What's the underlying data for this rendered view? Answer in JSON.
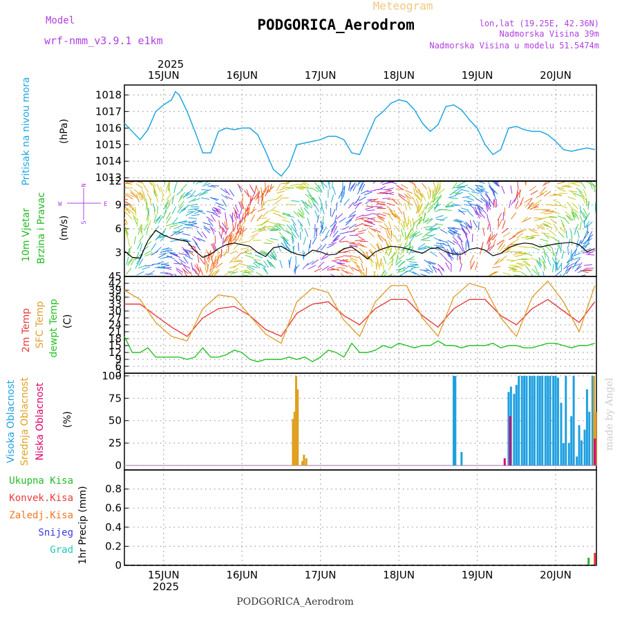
{
  "header": {
    "model_label": "Model",
    "model_name": "wrf-nmm_v3.9.1 e1km",
    "meteogram_label": "Meteogram",
    "station": "PODGORICA_Aerodrom",
    "lonlat": "lon,lat (19.25E, 42.36N)",
    "elevation": "Nadmorska Visina 39m",
    "model_elevation": "Nadmorska Visina u modelu 51.5474m",
    "footer_station": "PODGORICA_Aerodrom",
    "watermark": "made by Angel"
  },
  "time_axis": {
    "year": "2025",
    "days": [
      "15JUN",
      "16JUN",
      "17JUN",
      "18JUN",
      "19JUN",
      "20JUN"
    ]
  },
  "colors": {
    "pressure": "#1fa6e0",
    "temp2m": "#e83a3a",
    "sfc_temp": "#e0a030",
    "dewpt": "#22c322",
    "high_cloud": "#1fa0e0",
    "mid_cloud": "#e0a020",
    "low_cloud": "#e0006a",
    "total_rain": "#22bb22",
    "conv_rain": "#e83a3a",
    "freezing_rain": "#f07820",
    "snow": "#3a3ae0",
    "graupel": "#22c8b8",
    "model_label": "#b040e0"
  },
  "chart_data": [
    {
      "type": "line",
      "panel": "pressure",
      "ylabel": [
        "Pritisak na nivou mora",
        "(hPa)"
      ],
      "ylim": [
        1012.8,
        1018.6
      ],
      "yticks": [
        1013,
        1014,
        1015,
        1016,
        1017,
        1018
      ],
      "x_unit": "days since 15JUN 00UTC",
      "series": [
        {
          "x": [
            -0.5,
            -0.4,
            -0.3,
            -0.2,
            -0.1,
            0,
            0.1,
            0.15,
            0.2,
            0.3,
            0.4,
            0.5,
            0.6,
            0.7,
            0.8,
            0.9,
            1,
            1.1,
            1.2,
            1.3,
            1.4,
            1.5,
            1.6,
            1.7,
            1.8,
            1.9,
            2,
            2.1,
            2.2,
            2.3,
            2.4,
            2.5,
            2.6,
            2.7,
            2.8,
            2.9,
            3,
            3.1,
            3.2,
            3.3,
            3.4,
            3.5,
            3.6,
            3.7,
            3.8,
            3.9,
            4,
            4.1,
            4.2,
            4.3,
            4.4,
            4.5,
            4.6,
            4.7,
            4.8,
            4.9,
            5,
            5.1,
            5.2,
            5.3,
            5.4,
            5.5
          ],
          "y": [
            1016.3,
            1015.8,
            1015.3,
            1015.9,
            1017.0,
            1017.4,
            1017.7,
            1018.2,
            1018.0,
            1017.0,
            1015.8,
            1014.5,
            1014.5,
            1015.8,
            1016.0,
            1015.9,
            1016.0,
            1016.0,
            1015.6,
            1014.6,
            1013.5,
            1013.1,
            1013.7,
            1015.0,
            1015.1,
            1015.2,
            1015.3,
            1015.5,
            1015.5,
            1015.3,
            1014.5,
            1014.4,
            1015.5,
            1016.6,
            1017.0,
            1017.5,
            1017.7,
            1017.6,
            1017.1,
            1016.3,
            1015.8,
            1016.2,
            1017.3,
            1017.4,
            1017.1,
            1016.5,
            1016.0,
            1015.0,
            1014.4,
            1014.7,
            1016.0,
            1016.1,
            1015.9,
            1015.8,
            1015.8,
            1015.6,
            1015.2,
            1014.7,
            1014.6,
            1014.7,
            1014.8,
            1014.7
          ]
        }
      ]
    },
    {
      "type": "line",
      "panel": "wind",
      "ylabel": [
        "10m Vjetar",
        "Brzina i Pravac",
        "(m/s)"
      ],
      "compass": [
        "N",
        "S",
        "W",
        "E"
      ],
      "ylim": [
        0,
        12
      ],
      "yticks": [
        3,
        6,
        9,
        12
      ],
      "x_unit": "days since 15JUN 00UTC",
      "series": [
        {
          "name": "speed",
          "x": [
            -0.5,
            -0.4,
            -0.3,
            -0.2,
            -0.1,
            0,
            0.1,
            0.2,
            0.3,
            0.4,
            0.5,
            0.6,
            0.7,
            0.8,
            0.9,
            1,
            1.1,
            1.2,
            1.3,
            1.4,
            1.5,
            1.6,
            1.7,
            1.8,
            1.9,
            2,
            2.1,
            2.2,
            2.3,
            2.4,
            2.5,
            2.6,
            2.7,
            2.8,
            2.9,
            3,
            3.1,
            3.2,
            3.3,
            3.4,
            3.5,
            3.6,
            3.7,
            3.8,
            3.9,
            4,
            4.1,
            4.2,
            4.3,
            4.4,
            4.5,
            4.6,
            4.7,
            4.8,
            4.9,
            5,
            5.1,
            5.2,
            5.3,
            5.4,
            5.5
          ],
          "y": [
            3.2,
            2.4,
            2.3,
            4.5,
            5.8,
            5.2,
            4.8,
            4.6,
            4.4,
            3.2,
            2.4,
            2.8,
            3.5,
            4.0,
            4.2,
            4.0,
            3.8,
            3.0,
            2.5,
            3.6,
            3.8,
            3.2,
            2.8,
            2.6,
            3.3,
            3.1,
            2.7,
            2.8,
            3.5,
            3.7,
            3.0,
            2.2,
            3.1,
            3.5,
            3.8,
            3.7,
            3.5,
            3.2,
            2.9,
            3.5,
            3.6,
            3.1,
            2.8,
            2.8,
            3.4,
            3.6,
            3.3,
            2.6,
            2.9,
            3.6,
            4.0,
            4.2,
            4.1,
            3.7,
            3.9,
            4.1,
            4.2,
            4.3,
            4.0,
            3.1,
            3.5
          ]
        }
      ]
    },
    {
      "type": "line",
      "panel": "temperature",
      "ylabel": [
        "2m Temp",
        "SFC Temp",
        "dewpt Temp",
        "(C)"
      ],
      "ylim": [
        3,
        45
      ],
      "yticks": [
        3,
        6,
        9,
        12,
        15,
        18,
        21,
        24,
        27,
        30,
        33,
        36,
        39,
        42,
        45
      ],
      "x_unit": "days since 15JUN 00UTC",
      "series": [
        {
          "name": "2m Temp",
          "x": [
            -0.5,
            -0.3,
            -0.1,
            0.1,
            0.3,
            0.5,
            0.7,
            0.9,
            1.1,
            1.3,
            1.5,
            1.7,
            1.9,
            2.1,
            2.3,
            2.5,
            2.7,
            2.9,
            3.1,
            3.3,
            3.5,
            3.7,
            3.9,
            4.1,
            4.3,
            4.5,
            4.7,
            4.9,
            5.1,
            5.3,
            5.5
          ],
          "y": [
            33,
            33,
            28,
            23,
            19,
            27,
            31,
            32,
            28,
            22,
            19,
            29,
            33,
            34,
            28,
            24,
            31,
            35,
            35,
            28,
            23,
            31,
            35,
            35,
            28,
            24,
            31,
            35,
            30,
            25,
            34
          ]
        },
        {
          "name": "SFC Temp",
          "x": [
            -0.5,
            -0.3,
            -0.1,
            0.1,
            0.3,
            0.5,
            0.7,
            0.9,
            1.1,
            1.3,
            1.5,
            1.7,
            1.9,
            2.1,
            2.3,
            2.5,
            2.7,
            2.9,
            3.1,
            3.3,
            3.5,
            3.7,
            3.9,
            4.1,
            4.3,
            4.5,
            4.7,
            4.9,
            5.1,
            5.3,
            5.5
          ],
          "y": [
            39,
            35,
            25,
            19,
            17,
            31,
            37,
            36,
            28,
            20,
            16,
            34,
            40,
            38,
            26,
            19,
            34,
            41,
            41,
            27,
            19,
            36,
            42,
            40,
            27,
            19,
            36,
            43,
            34,
            21,
            41
          ]
        },
        {
          "name": "dewpt Temp",
          "x": [
            -0.5,
            -0.4,
            -0.3,
            -0.2,
            -0.1,
            0,
            0.1,
            0.2,
            0.3,
            0.4,
            0.5,
            0.6,
            0.7,
            0.8,
            0.9,
            1,
            1.1,
            1.2,
            1.3,
            1.4,
            1.5,
            1.6,
            1.7,
            1.8,
            1.9,
            2,
            2.1,
            2.2,
            2.3,
            2.4,
            2.5,
            2.6,
            2.7,
            2.8,
            2.9,
            3,
            3.1,
            3.2,
            3.3,
            3.4,
            3.5,
            3.6,
            3.7,
            3.8,
            3.9,
            4,
            4.1,
            4.2,
            4.3,
            4.4,
            4.5,
            4.6,
            4.7,
            4.8,
            4.9,
            5,
            5.1,
            5.2,
            5.3,
            5.4,
            5.5
          ],
          "y": [
            19,
            12,
            12,
            14,
            10,
            10,
            10,
            10,
            9,
            10,
            14,
            10,
            10,
            11,
            13,
            12,
            9,
            8,
            9,
            9,
            9,
            10,
            9,
            10,
            8,
            10,
            13,
            12,
            10,
            16,
            12,
            12,
            13,
            15,
            14,
            16,
            15,
            14,
            15,
            15,
            17,
            15,
            15,
            14,
            15,
            15,
            15,
            16,
            14,
            15,
            15,
            14,
            14,
            15,
            16,
            16,
            15,
            14,
            15,
            15,
            16
          ]
        }
      ]
    },
    {
      "type": "bar",
      "panel": "clouds",
      "ylabel": [
        "Visoka Oblacnost",
        "Srednja Oblacnost",
        "Niska Oblacnost",
        "(%)"
      ],
      "ylim": [
        -5,
        103
      ],
      "yticks": [
        0,
        25,
        50,
        75,
        100
      ],
      "x_unit": "days since 15JUN 00UTC",
      "series": [
        {
          "name": "Visoka Oblacnost",
          "x": [
            3.7,
            3.72,
            3.8,
            4.4,
            4.43,
            4.47,
            4.5,
            4.53,
            4.57,
            4.6,
            4.63,
            4.67,
            4.7,
            4.73,
            4.77,
            4.8,
            4.83,
            4.87,
            4.9,
            4.93,
            4.97,
            5.0,
            5.03,
            5.07,
            5.1,
            5.13,
            5.17,
            5.2,
            5.23,
            5.27,
            5.3,
            5.33,
            5.37,
            5.4,
            5.43,
            5.47
          ],
          "y": [
            100,
            100,
            15,
            82,
            88,
            80,
            90,
            100,
            100,
            100,
            100,
            100,
            100,
            100,
            100,
            100,
            100,
            100,
            100,
            100,
            100,
            100,
            98,
            70,
            25,
            100,
            25,
            55,
            100,
            10,
            45,
            28,
            40,
            85,
            60,
            100
          ]
        },
        {
          "name": "Srednja Oblacnost",
          "x": [
            1.65,
            1.67,
            1.69,
            1.71,
            1.77,
            1.79,
            1.82,
            5.49,
            5.51
          ],
          "y": [
            52,
            60,
            100,
            85,
            5,
            12,
            8,
            100,
            60
          ]
        },
        {
          "name": "Niska Oblacnost",
          "x": [
            4.35,
            4.42,
            5.5
          ],
          "y": [
            8,
            55,
            30
          ]
        }
      ]
    },
    {
      "type": "bar",
      "panel": "precipitation",
      "ylabel": [
        "1hr Precip (mm)"
      ],
      "legend": [
        "Ukupna Kisa",
        "Konvek.Kisa",
        "Zaledj.Kisa",
        "Snijeg",
        "Grad"
      ],
      "ylim": [
        0,
        1.0
      ],
      "yticks": [
        0,
        0.2,
        0.4,
        0.6,
        0.8
      ],
      "x_unit": "days since 15JUN 00UTC",
      "series": [
        {
          "name": "Ukupna Kisa",
          "x": [
            5.42
          ],
          "y": [
            0.08
          ]
        },
        {
          "name": "Konvek.Kisa",
          "x": [
            5.5
          ],
          "y": [
            0.13
          ]
        }
      ]
    }
  ]
}
